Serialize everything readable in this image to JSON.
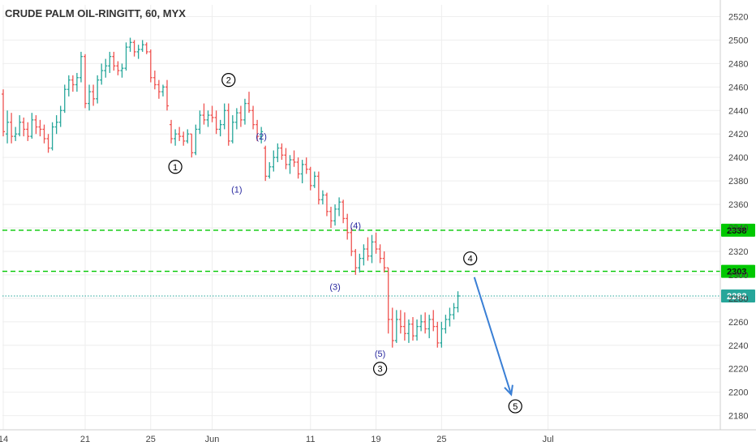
{
  "chart_data": {
    "type": "candlestick",
    "title": "CRUDE PALM OIL-RINGITT, 60, MYX",
    "y_ticks": [
      2180,
      2200,
      2220,
      2240,
      2260,
      2280,
      2300,
      2320,
      2340,
      2360,
      2380,
      2400,
      2420,
      2440,
      2460,
      2480,
      2500,
      2520
    ],
    "ylim": [
      2168,
      2530
    ],
    "x_ticks": [
      "14",
      "21",
      "25",
      "Jun",
      "11",
      "19",
      "25",
      "Jul"
    ],
    "xlim": [
      0,
      120
    ],
    "x_tick_positions": [
      0,
      20,
      36,
      51,
      75,
      91,
      107,
      133
    ],
    "grid": true,
    "colors": {
      "up": "#26a69a",
      "down": "#ef5350",
      "level_line": "#00c800",
      "current_line": "#26a69a",
      "arrow": "#3a7fd5",
      "wave_blue": "#2a2aa0",
      "wave_black": "#000000"
    },
    "candles": [
      [
        2454,
        2458,
        2418,
        2422
      ],
      [
        2420,
        2440,
        2412,
        2430
      ],
      [
        2430,
        2438,
        2412,
        2418
      ],
      [
        2418,
        2426,
        2414,
        2420
      ],
      [
        2420,
        2436,
        2418,
        2430
      ],
      [
        2430,
        2434,
        2418,
        2424
      ],
      [
        2424,
        2430,
        2414,
        2418
      ],
      [
        2418,
        2438,
        2416,
        2432
      ],
      [
        2432,
        2436,
        2420,
        2426
      ],
      [
        2426,
        2432,
        2418,
        2424
      ],
      [
        2424,
        2428,
        2412,
        2416
      ],
      [
        2416,
        2420,
        2404,
        2408
      ],
      [
        2408,
        2430,
        2406,
        2426
      ],
      [
        2426,
        2436,
        2420,
        2430
      ],
      [
        2430,
        2444,
        2426,
        2440
      ],
      [
        2440,
        2462,
        2438,
        2458
      ],
      [
        2458,
        2470,
        2452,
        2466
      ],
      [
        2466,
        2470,
        2456,
        2462
      ],
      [
        2462,
        2472,
        2456,
        2468
      ],
      [
        2468,
        2490,
        2464,
        2486
      ],
      [
        2486,
        2488,
        2442,
        2446
      ],
      [
        2446,
        2462,
        2440,
        2456
      ],
      [
        2456,
        2462,
        2444,
        2450
      ],
      [
        2450,
        2470,
        2446,
        2466
      ],
      [
        2466,
        2480,
        2462,
        2474
      ],
      [
        2474,
        2484,
        2468,
        2478
      ],
      [
        2478,
        2490,
        2472,
        2486
      ],
      [
        2486,
        2490,
        2474,
        2478
      ],
      [
        2478,
        2482,
        2470,
        2474
      ],
      [
        2474,
        2480,
        2468,
        2476
      ],
      [
        2476,
        2498,
        2474,
        2494
      ],
      [
        2494,
        2502,
        2490,
        2498
      ],
      [
        2498,
        2500,
        2486,
        2490
      ],
      [
        2490,
        2496,
        2484,
        2492
      ],
      [
        2492,
        2500,
        2490,
        2496
      ],
      [
        2496,
        2498,
        2488,
        2490
      ],
      [
        2490,
        2492,
        2464,
        2468
      ],
      [
        2468,
        2474,
        2458,
        2462
      ],
      [
        2462,
        2466,
        2450,
        2456
      ],
      [
        2456,
        2462,
        2452,
        2460
      ],
      [
        2460,
        2466,
        2440,
        2444
      ],
      [
        2428,
        2432,
        2412,
        2416
      ],
      [
        2416,
        2424,
        2410,
        2420
      ],
      [
        2420,
        2426,
        2414,
        2418
      ],
      [
        2418,
        2422,
        2410,
        2414
      ],
      [
        2414,
        2424,
        2412,
        2420
      ],
      [
        2420,
        2420,
        2400,
        2404
      ],
      [
        2404,
        2428,
        2402,
        2424
      ],
      [
        2424,
        2440,
        2420,
        2436
      ],
      [
        2436,
        2446,
        2428,
        2432
      ],
      [
        2432,
        2440,
        2426,
        2436
      ],
      [
        2436,
        2444,
        2430,
        2434
      ],
      [
        2434,
        2440,
        2420,
        2424
      ],
      [
        2424,
        2432,
        2418,
        2428
      ],
      [
        2428,
        2446,
        2424,
        2440
      ],
      [
        2440,
        2446,
        2410,
        2414
      ],
      [
        2414,
        2436,
        2412,
        2430
      ],
      [
        2430,
        2442,
        2424,
        2438
      ],
      [
        2438,
        2444,
        2426,
        2432
      ],
      [
        2432,
        2450,
        2428,
        2446
      ],
      [
        2446,
        2456,
        2438,
        2440
      ],
      [
        2440,
        2444,
        2424,
        2428
      ],
      [
        2428,
        2432,
        2414,
        2418
      ],
      [
        2418,
        2426,
        2412,
        2422
      ],
      [
        2408,
        2410,
        2380,
        2384
      ],
      [
        2384,
        2396,
        2382,
        2392
      ],
      [
        2392,
        2406,
        2388,
        2400
      ],
      [
        2400,
        2412,
        2396,
        2408
      ],
      [
        2408,
        2412,
        2398,
        2402
      ],
      [
        2402,
        2408,
        2390,
        2394
      ],
      [
        2394,
        2402,
        2386,
        2398
      ],
      [
        2398,
        2406,
        2392,
        2396
      ],
      [
        2396,
        2400,
        2382,
        2386
      ],
      [
        2386,
        2398,
        2378,
        2394
      ],
      [
        2394,
        2400,
        2386,
        2390
      ],
      [
        2390,
        2392,
        2372,
        2376
      ],
      [
        2376,
        2388,
        2374,
        2384
      ],
      [
        2384,
        2388,
        2360,
        2364
      ],
      [
        2364,
        2372,
        2360,
        2368
      ],
      [
        2368,
        2370,
        2350,
        2354
      ],
      [
        2354,
        2358,
        2340,
        2346
      ],
      [
        2346,
        2360,
        2342,
        2356
      ],
      [
        2356,
        2366,
        2350,
        2362
      ],
      [
        2362,
        2364,
        2344,
        2348
      ],
      [
        2348,
        2352,
        2330,
        2336
      ],
      [
        2336,
        2340,
        2316,
        2320
      ],
      [
        2320,
        2322,
        2300,
        2306
      ],
      [
        2306,
        2318,
        2302,
        2314
      ],
      [
        2314,
        2326,
        2308,
        2322
      ],
      [
        2322,
        2332,
        2312,
        2316
      ],
      [
        2316,
        2334,
        2310,
        2328
      ],
      [
        2328,
        2336,
        2318,
        2322
      ],
      [
        2322,
        2326,
        2310,
        2314
      ],
      [
        2314,
        2320,
        2302,
        2306
      ],
      [
        2306,
        2306,
        2250,
        2262
      ],
      [
        2262,
        2272,
        2238,
        2244
      ],
      [
        2244,
        2270,
        2242,
        2262
      ],
      [
        2262,
        2270,
        2250,
        2256
      ],
      [
        2256,
        2268,
        2244,
        2250
      ],
      [
        2250,
        2262,
        2242,
        2258
      ],
      [
        2258,
        2264,
        2244,
        2248
      ],
      [
        2248,
        2262,
        2244,
        2256
      ],
      [
        2256,
        2266,
        2252,
        2260
      ],
      [
        2260,
        2268,
        2250,
        2254
      ],
      [
        2254,
        2266,
        2246,
        2262
      ],
      [
        2262,
        2270,
        2252,
        2256
      ],
      [
        2256,
        2260,
        2238,
        2242
      ],
      [
        2242,
        2260,
        2238,
        2254
      ],
      [
        2254,
        2266,
        2250,
        2262
      ],
      [
        2262,
        2272,
        2256,
        2266
      ],
      [
        2266,
        2276,
        2262,
        2272
      ],
      [
        2272,
        2286,
        2268,
        2282
      ]
    ],
    "levels": [
      {
        "price": 2338,
        "label": "2338",
        "style": "dashed"
      },
      {
        "price": 2303,
        "label": "2303",
        "style": "dashed"
      },
      {
        "price": 2282,
        "label": "2282",
        "style": "dotted"
      }
    ],
    "wave_labels": [
      {
        "text": "1",
        "circled": true,
        "color": "#000000",
        "x": 42,
        "y": 2392
      },
      {
        "text": "2",
        "circled": true,
        "color": "#000000",
        "x": 55,
        "y": 2466
      },
      {
        "text": "(1)",
        "circled": false,
        "color": "#2a2aa0",
        "x": 57,
        "y": 2373
      },
      {
        "text": "(2)",
        "circled": false,
        "color": "#2a2aa0",
        "x": 63,
        "y": 2418
      },
      {
        "text": "(3)",
        "circled": false,
        "color": "#2a2aa0",
        "x": 81,
        "y": 2290
      },
      {
        "text": "(4)",
        "circled": false,
        "color": "#2a2aa0",
        "x": 86,
        "y": 2342
      },
      {
        "text": "(5)",
        "circled": false,
        "color": "#2a2aa0",
        "x": 92,
        "y": 2233
      },
      {
        "text": "3",
        "circled": true,
        "color": "#000000",
        "x": 92,
        "y": 2220
      },
      {
        "text": "4",
        "circled": true,
        "color": "#000000",
        "x": 114,
        "y": 2314
      },
      {
        "text": "5",
        "circled": true,
        "color": "#000000",
        "x": 125,
        "y": 2188
      }
    ],
    "arrow": {
      "from": [
        115,
        2298
      ],
      "to": [
        124,
        2198
      ]
    }
  }
}
